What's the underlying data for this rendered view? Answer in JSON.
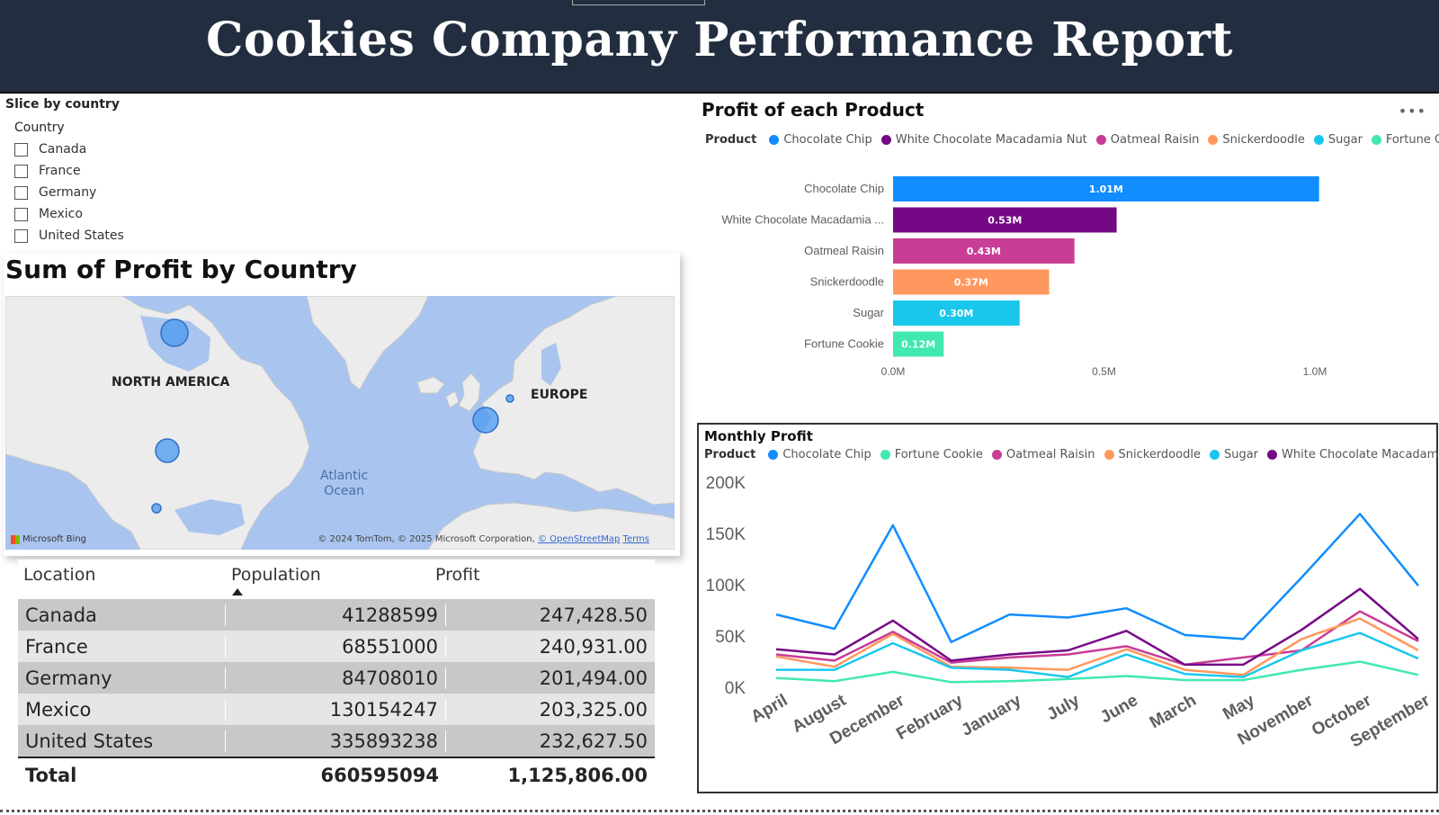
{
  "header": {
    "title": "Cookies Company Performance Report"
  },
  "slicer": {
    "title": "Slice by country",
    "field": "Country",
    "items": [
      "Canada",
      "France",
      "Germany",
      "Mexico",
      "United States"
    ]
  },
  "map": {
    "title": "Sum of  Profit  by Country",
    "labels": {
      "north_america": "NORTH AMERICA",
      "europe": "EUROPE",
      "ocean_line1": "Atlantic",
      "ocean_line2": "Ocean"
    },
    "attribution": "Microsoft Bing",
    "copyright": "© 2024 TomTom, © 2025 Microsoft Corporation,",
    "osm": "© OpenStreetMap",
    "terms": "Terms",
    "water_color": "#a9c4ef",
    "land_color": "#ececec",
    "bubble_color": "#4f9bf0"
  },
  "table": {
    "headers": [
      "Location",
      "Population",
      "Profit"
    ],
    "rows": [
      [
        "Canada",
        "41288599",
        "247,428.50"
      ],
      [
        "France",
        "68551000",
        "240,931.00"
      ],
      [
        "Germany",
        "84708010",
        "201,494.00"
      ],
      [
        "Mexico",
        "130154247",
        "203,325.00"
      ],
      [
        "United States",
        "335893238",
        "232,627.50"
      ]
    ],
    "total": [
      "Total",
      "660595094",
      "1,125,806.00"
    ]
  },
  "chart_data": [
    {
      "type": "bar",
      "title": "Profit of each Product",
      "legend_title": "Product",
      "legend_position": "top-left",
      "categories": [
        "Chocolate Chip",
        "White Chocolate Macadamia ...",
        "Oatmeal Raisin",
        "Snickerdoodle",
        "Sugar",
        "Fortune Cookie"
      ],
      "legend": [
        "Chocolate Chip",
        "White Chocolate Macadamia Nut",
        "Oatmeal Raisin",
        "Snickerdoodle",
        "Sugar",
        "Fortune Cookie"
      ],
      "values": [
        1.01,
        0.53,
        0.43,
        0.37,
        0.3,
        0.12
      ],
      "data_labels": [
        "1.01M",
        "0.53M",
        "0.43M",
        "0.37M",
        "0.30M",
        "0.12M"
      ],
      "colors": [
        "#118dff",
        "#750985",
        "#c83d95",
        "#ff985e",
        "#1ac7ec",
        "#41e8b2"
      ],
      "xlim": [
        0,
        1.0
      ],
      "xticks": [
        "0.0M",
        "0.5M",
        "1.0M"
      ],
      "grid": false
    },
    {
      "type": "line",
      "title": "Monthly Profit",
      "legend_title": "Product",
      "legend_position": "top-left",
      "categories": [
        "April",
        "August",
        "December",
        "February",
        "January",
        "July",
        "June",
        "March",
        "May",
        "November",
        "October",
        "September"
      ],
      "ylim": [
        0,
        200000
      ],
      "yticks": [
        "0K",
        "50K",
        "100K",
        "150K",
        "200K"
      ],
      "series": [
        {
          "name": "Chocolate Chip",
          "color": "#118dff",
          "values": [
            71000,
            57000,
            158000,
            44000,
            71000,
            68000,
            77000,
            51000,
            47000,
            107000,
            169000,
            99000
          ]
        },
        {
          "name": "Fortune Cookie",
          "color": "#41e8b2",
          "values": [
            9000,
            6000,
            15000,
            5000,
            6000,
            8000,
            11000,
            7000,
            7000,
            17000,
            25000,
            12000
          ]
        },
        {
          "name": "Oatmeal Raisin",
          "color": "#c83d95",
          "values": [
            32000,
            26000,
            54000,
            24000,
            29000,
            32000,
            40000,
            22000,
            29000,
            36000,
            74000,
            45000
          ]
        },
        {
          "name": "Snickerdoodle",
          "color": "#ff985e",
          "values": [
            30000,
            20000,
            52000,
            20000,
            19000,
            17000,
            37000,
            17000,
            12000,
            47000,
            67000,
            36000
          ]
        },
        {
          "name": "Sugar",
          "color": "#1ac7ec",
          "values": [
            17000,
            17000,
            43000,
            19000,
            17000,
            10000,
            32000,
            13000,
            10000,
            36000,
            53000,
            28000
          ]
        },
        {
          "name": "White Chocolate Macadamia Nut",
          "color": "#750985",
          "values": [
            37000,
            32000,
            65000,
            26000,
            32000,
            36000,
            55000,
            22000,
            22000,
            56000,
            96000,
            47000
          ]
        }
      ],
      "grid": false
    }
  ]
}
